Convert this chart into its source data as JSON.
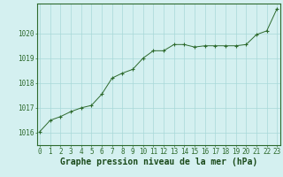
{
  "x": [
    0,
    1,
    2,
    3,
    4,
    5,
    6,
    7,
    8,
    9,
    10,
    11,
    12,
    13,
    14,
    15,
    16,
    17,
    18,
    19,
    20,
    21,
    22,
    23
  ],
  "y": [
    1016.05,
    1016.5,
    1016.65,
    1016.85,
    1017.0,
    1017.1,
    1017.55,
    1018.2,
    1018.4,
    1018.55,
    1019.0,
    1019.3,
    1019.3,
    1019.55,
    1019.55,
    1019.45,
    1019.5,
    1019.5,
    1019.5,
    1019.5,
    1019.55,
    1019.95,
    1020.1,
    1021.0
  ],
  "line_color": "#2d6a2d",
  "marker": "+",
  "marker_size": 3,
  "bg_color": "#d4f0f0",
  "grid_color": "#a8d8d8",
  "title": "Graphe pression niveau de la mer (hPa)",
  "ylim": [
    1015.5,
    1021.2
  ],
  "yticks": [
    1016,
    1017,
    1018,
    1019,
    1020
  ],
  "xticks": [
    0,
    1,
    2,
    3,
    4,
    5,
    6,
    7,
    8,
    9,
    10,
    11,
    12,
    13,
    14,
    15,
    16,
    17,
    18,
    19,
    20,
    21,
    22,
    23
  ],
  "title_fontsize": 7,
  "tick_fontsize": 5.5,
  "title_color": "#1a4a1a",
  "axis_color": "#2d6a2d",
  "line_width": 0.7,
  "marker_edge_width": 0.8
}
